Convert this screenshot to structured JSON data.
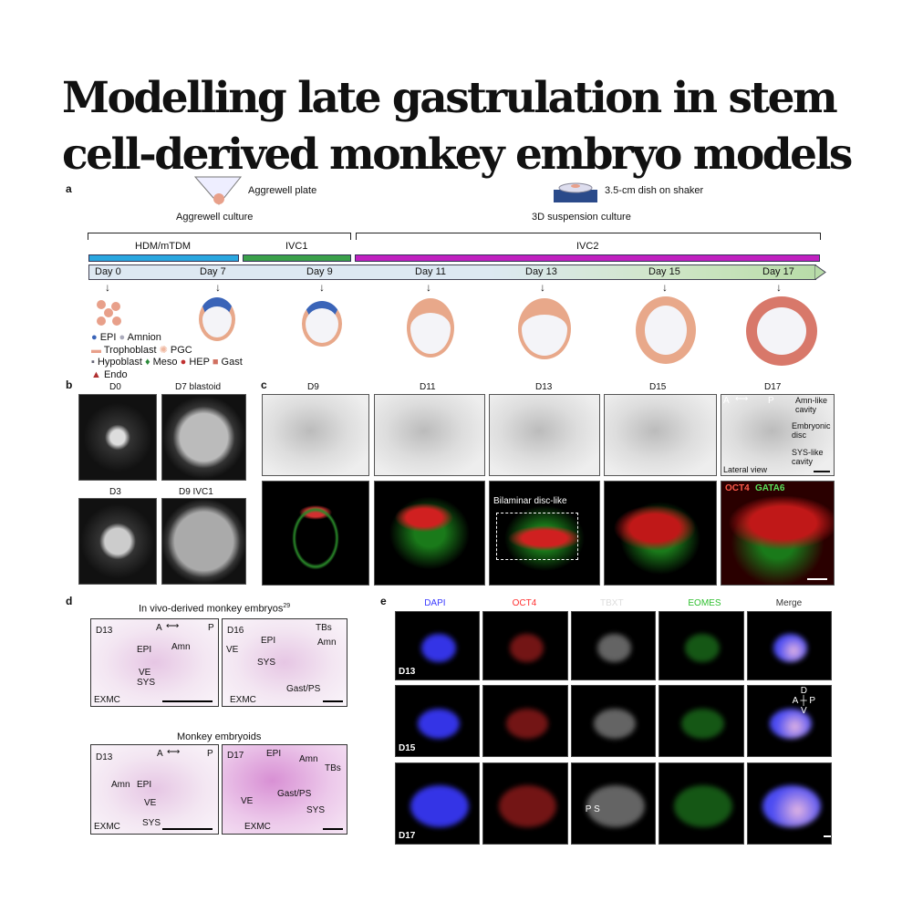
{
  "title": {
    "line1": "Modelling late gastrulation in stem",
    "line2": "cell-derived monkey embryo models"
  },
  "panel_a": {
    "label": "a",
    "aggrewell_plate": "Aggrewell plate",
    "aggrewell_culture": "Aggrewell culture",
    "dish": "3.5-cm dish on shaker",
    "suspension": "3D suspension culture",
    "media": [
      {
        "label": "HDM/mTDM",
        "color": "#2aa7e0"
      },
      {
        "label": "IVC1",
        "color": "#3aa04a"
      },
      {
        "label": "IVC2",
        "color": "#c020c0"
      }
    ],
    "days": [
      "Day 0",
      "Day 7",
      "Day 9",
      "Day 11",
      "Day 13",
      "Day 15",
      "Day 17"
    ],
    "legend": [
      "EPI",
      "Amnion",
      "Trophoblast",
      "PGC",
      "Hypoblast",
      "Meso",
      "HEP",
      "Gast",
      "Endo"
    ]
  },
  "panel_b": {
    "label": "b",
    "images": [
      "D0",
      "D7 blastoid",
      "D3",
      "D9 IVC1"
    ]
  },
  "panel_c": {
    "label": "c",
    "columns": [
      "D9",
      "D11",
      "D13",
      "D15",
      "D17"
    ],
    "d17_annotations": {
      "axis_a": "A",
      "axis_p": "P",
      "amn": "Amn-like cavity",
      "disc": "Embryonic disc",
      "sys": "SYS-like cavity",
      "view": "Lateral view"
    },
    "bilaminar": "Bilaminar disc-like",
    "stain_oct4": "OCT4",
    "stain_gata6": "GATA6"
  },
  "panel_d": {
    "label": "d",
    "invivo_title": "In vivo-derived monkey embryos",
    "invivo_ref": "29",
    "embryoid_title": "Monkey embryoids",
    "img1": {
      "day": "D13",
      "a": "A",
      "p": "P",
      "labels": [
        "EPI",
        "Amn",
        "VE",
        "SYS",
        "EXMC"
      ]
    },
    "img2": {
      "day": "D16",
      "labels": [
        "TBs",
        "EPI",
        "Amn",
        "VE",
        "SYS",
        "EXMC",
        "Gast/PS"
      ]
    },
    "img3": {
      "day": "D13",
      "a": "A",
      "p": "P",
      "labels": [
        "Amn",
        "EPI",
        "VE",
        "SYS",
        "EXMC"
      ]
    },
    "img4": {
      "day": "D17",
      "labels": [
        "EPI",
        "Amn",
        "TBs",
        "VE",
        "Gast/PS",
        "SYS",
        "EXMC"
      ]
    }
  },
  "panel_e": {
    "label": "e",
    "channels": [
      {
        "name": "DAPI",
        "color": "#3a3aff"
      },
      {
        "name": "OCT4",
        "color": "#ff3030"
      },
      {
        "name": "TBXT",
        "color": "#dddddd"
      },
      {
        "name": "EOMES",
        "color": "#30c030"
      },
      {
        "name": "Merge",
        "color": "#ffffff"
      }
    ],
    "rows": [
      "D13",
      "D15",
      "D17"
    ],
    "axes": {
      "d": "D",
      "a": "A",
      "p": "P",
      "v": "V"
    },
    "ps": "P S"
  }
}
